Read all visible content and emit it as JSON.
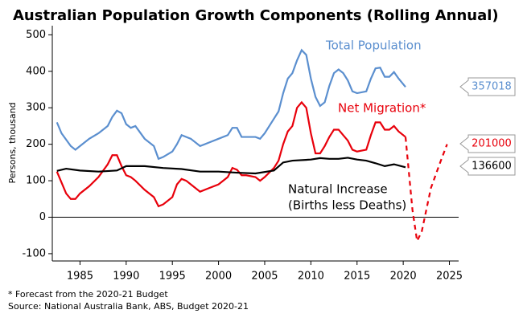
{
  "chart_data": {
    "type": "line",
    "title": "Australian Population Growth Components (Rolling Annual)",
    "ylabel": "Persons, thousand",
    "xlim": [
      1982,
      2026
    ],
    "xticks": [
      1985,
      1990,
      1995,
      2000,
      2005,
      2010,
      2015,
      2020,
      2025
    ],
    "ylim": [
      -120,
      525
    ],
    "yticks": [
      -100,
      0,
      100,
      200,
      300,
      400,
      500
    ],
    "series": [
      {
        "name": "Total Population",
        "color": "#5b8fcf",
        "end_label": "357018",
        "x": [
          1982.5,
          1983,
          1984,
          1984.5,
          1985,
          1986,
          1987,
          1988,
          1988.5,
          1989,
          1989.5,
          1990,
          1990.5,
          1991,
          1992,
          1993,
          1993.5,
          1994,
          1995,
          1995.5,
          1996,
          1997,
          1998,
          1999,
          2000,
          2001,
          2001.5,
          2002,
          2002.5,
          2003,
          2004,
          2004.5,
          2005,
          2006,
          2006.5,
          2007,
          2007.5,
          2008,
          2008.5,
          2009,
          2009.5,
          2010,
          2010.5,
          2011,
          2011.5,
          2012,
          2012.5,
          2013,
          2013.5,
          2014,
          2014.5,
          2015,
          2016,
          2016.5,
          2017,
          2017.5,
          2018,
          2018.5,
          2019,
          2019.5,
          2020.25
        ],
        "values": [
          260,
          230,
          195,
          185,
          195,
          215,
          230,
          250,
          275,
          292,
          285,
          255,
          245,
          250,
          215,
          195,
          160,
          165,
          180,
          200,
          225,
          215,
          195,
          205,
          215,
          225,
          245,
          245,
          220,
          220,
          220,
          215,
          230,
          270,
          290,
          340,
          380,
          395,
          430,
          458,
          445,
          380,
          330,
          305,
          315,
          360,
          395,
          405,
          395,
          375,
          345,
          340,
          345,
          380,
          408,
          410,
          385,
          385,
          398,
          380,
          357
        ]
      },
      {
        "name": "Net Migration*",
        "color": "#e8000b",
        "end_label": "201000",
        "x": [
          1982.5,
          1983,
          1983.5,
          1984,
          1984.5,
          1985,
          1986,
          1987,
          1988,
          1988.5,
          1989,
          1989.5,
          1990,
          1990.5,
          1991,
          1992,
          1993,
          1993.5,
          1994,
          1995,
          1995.5,
          1996,
          1996.5,
          1997,
          1998,
          1999,
          2000,
          2001,
          2001.5,
          2002,
          2002.5,
          2003,
          2004,
          2004.5,
          2005,
          2006,
          2006.5,
          2007,
          2007.5,
          2008,
          2008.5,
          2009,
          2009.5,
          2010,
          2010.5,
          2011,
          2011.5,
          2012,
          2012.5,
          2013,
          2013.5,
          2014,
          2014.5,
          2015,
          2016,
          2016.5,
          2017,
          2017.5,
          2018,
          2018.5,
          2019,
          2019.5,
          2020.25
        ],
        "values": [
          125,
          95,
          65,
          50,
          50,
          65,
          85,
          110,
          145,
          170,
          170,
          140,
          115,
          110,
          100,
          75,
          55,
          30,
          35,
          55,
          90,
          105,
          100,
          90,
          70,
          80,
          90,
          110,
          135,
          130,
          115,
          115,
          110,
          100,
          110,
          135,
          155,
          200,
          235,
          250,
          300,
          315,
          300,
          230,
          175,
          175,
          195,
          220,
          240,
          240,
          225,
          210,
          185,
          180,
          185,
          225,
          260,
          260,
          240,
          240,
          250,
          235,
          220
        ],
        "forecast_x": [
          2020.25,
          2021,
          2021.5,
          2022,
          2023,
          2024,
          2024.75
        ],
        "forecast_values": [
          220,
          20,
          -65,
          -40,
          80,
          150,
          200
        ]
      },
      {
        "name": "Natural Increase",
        "name_line2": "(Births less Deaths)",
        "color": "#000000",
        "end_label": "136600",
        "x": [
          1982.5,
          1983.5,
          1985,
          1987,
          1989,
          1990,
          1992,
          1994,
          1996,
          1998,
          2000,
          2002,
          2004,
          2006,
          2007,
          2008,
          2010,
          2011,
          2012,
          2013,
          2014,
          2015,
          2016,
          2017,
          2018,
          2019,
          2020.25
        ],
        "values": [
          127,
          133,
          128,
          125,
          128,
          140,
          140,
          135,
          132,
          125,
          125,
          122,
          120,
          128,
          150,
          155,
          158,
          162,
          160,
          160,
          163,
          158,
          155,
          148,
          140,
          145,
          137
        ]
      }
    ],
    "notes": [
      "* Forecast from the 2020-21 Budget",
      "Source: National Australia Bank, ABS, Budget 2020-21"
    ]
  }
}
